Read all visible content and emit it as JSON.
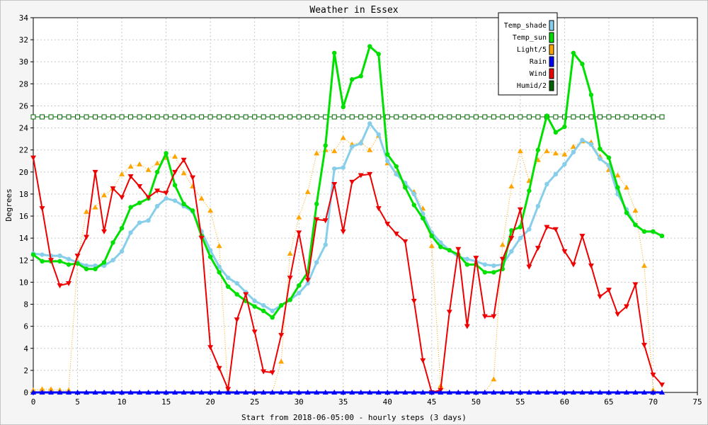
{
  "chart_data": {
    "type": "line",
    "title": "Weather in Essex",
    "xlabel": "Start from 2018-06-05:00 - hourly steps (3 days)",
    "ylabel": "Degrees",
    "xlim": [
      0,
      75
    ],
    "ylim": [
      0,
      34
    ],
    "xticks": [
      0,
      5,
      10,
      15,
      20,
      25,
      30,
      35,
      40,
      45,
      50,
      55,
      60,
      65,
      70,
      75
    ],
    "yticks": [
      0,
      2,
      4,
      6,
      8,
      10,
      12,
      14,
      16,
      18,
      20,
      22,
      24,
      26,
      28,
      30,
      32,
      34
    ],
    "grid": true,
    "legend_position": "top-right",
    "background": "#ffffff",
    "page_background": "#f5f5f5",
    "series": [
      {
        "name": "Temp_shade",
        "color": "#87ceeb",
        "marker": "circle",
        "line_width": 3,
        "dotted": false,
        "values": [
          12.6,
          12.5,
          12.4,
          12.4,
          12.1,
          11.8,
          11.5,
          11.5,
          11.5,
          12.0,
          12.8,
          14.5,
          15.4,
          15.6,
          16.9,
          17.6,
          17.4,
          16.9,
          16.4,
          14.6,
          12.9,
          11.4,
          10.4,
          9.9,
          9.1,
          8.3,
          7.9,
          7.4,
          7.9,
          8.4,
          9.0,
          9.9,
          11.8,
          13.4,
          20.3,
          20.4,
          22.3,
          22.6,
          24.4,
          23.4,
          21.0,
          19.8,
          19.0,
          18.0,
          16.2,
          14.5,
          13.6,
          12.9,
          12.3,
          12.1,
          11.9,
          11.6,
          11.5,
          11.6,
          12.8,
          14.0,
          14.8,
          16.9,
          18.9,
          19.8,
          20.7,
          21.8,
          22.9,
          22.5,
          21.2,
          20.6,
          18.0,
          16.6,
          15.2,
          14.6,
          14.6,
          14.2
        ]
      },
      {
        "name": "Temp_sun",
        "color": "#00e000",
        "marker": "circle",
        "line_width": 3,
        "dotted": false,
        "values": [
          12.5,
          11.9,
          11.9,
          11.9,
          11.6,
          11.7,
          11.2,
          11.2,
          11.8,
          13.6,
          14.9,
          16.8,
          17.2,
          17.6,
          20.0,
          21.7,
          18.8,
          17.1,
          16.5,
          14.2,
          12.3,
          10.9,
          9.6,
          8.9,
          8.3,
          7.8,
          7.4,
          6.8,
          7.9,
          8.4,
          9.7,
          10.9,
          17.1,
          22.4,
          30.8,
          25.9,
          28.4,
          28.7,
          31.4,
          30.7,
          21.6,
          20.5,
          18.6,
          17.0,
          15.8,
          14.2,
          13.2,
          12.9,
          12.5,
          11.6,
          11.6,
          10.9,
          10.9,
          11.2,
          14.7,
          15.0,
          18.3,
          22.0,
          25.1,
          23.6,
          24.1,
          30.8,
          29.8,
          27.0,
          22.1,
          21.3,
          18.6,
          16.3,
          15.2,
          14.6,
          14.6,
          14.2
        ]
      },
      {
        "name": "Light/5",
        "color": "#ffa500",
        "marker": "triangle-up",
        "line_width": 1,
        "dotted": true,
        "values": [
          0.2,
          0.3,
          0.3,
          0.2,
          0.2,
          11.9,
          16.4,
          16.8,
          17.9,
          18.5,
          19.8,
          20.5,
          20.7,
          20.2,
          20.8,
          21.3,
          21.4,
          19.9,
          18.7,
          17.6,
          16.5,
          13.3,
          0.2,
          0.0,
          0.0,
          0.1,
          0.0,
          0.0,
          2.8,
          12.6,
          15.9,
          18.2,
          21.7,
          22.0,
          21.9,
          23.1,
          22.5,
          22.7,
          22.0,
          23.3,
          20.8,
          19.9,
          18.9,
          18.2,
          16.7,
          13.3,
          0.6,
          0.0,
          0.0,
          0.0,
          0.0,
          0.0,
          1.2,
          13.4,
          18.7,
          21.9,
          19.2,
          21.1,
          21.9,
          21.7,
          21.6,
          22.3,
          22.8,
          22.7,
          21.4,
          20.2,
          19.7,
          18.6,
          16.5,
          11.5,
          0.2,
          0.0
        ]
      },
      {
        "name": "Rain",
        "color": "#0000ff",
        "marker": "triangle-up",
        "line_width": 3,
        "dotted": false,
        "values": [
          0,
          0,
          0,
          0,
          0,
          0,
          0,
          0,
          0,
          0,
          0,
          0,
          0,
          0,
          0,
          0,
          0,
          0,
          0,
          0,
          0,
          0,
          0,
          0,
          0,
          0,
          0,
          0,
          0,
          0,
          0,
          0,
          0,
          0,
          0,
          0,
          0,
          0,
          0,
          0,
          0,
          0,
          0,
          0,
          0,
          0,
          0,
          0,
          0,
          0,
          0,
          0,
          0,
          0,
          0,
          0,
          0,
          0,
          0,
          0,
          0,
          0,
          0,
          0,
          0,
          0,
          0,
          0,
          0,
          0,
          0,
          0
        ]
      },
      {
        "name": "Wind",
        "color": "#ee0000",
        "marker": "triangle-down",
        "line_width": 2,
        "dotted": false,
        "values": [
          21.3,
          16.7,
          12.0,
          9.7,
          9.9,
          12.4,
          14.1,
          20.0,
          14.6,
          18.5,
          17.7,
          19.6,
          18.7,
          17.7,
          18.3,
          18.1,
          20.0,
          21.1,
          19.5,
          14.0,
          4.1,
          2.2,
          0.3,
          6.6,
          8.9,
          5.5,
          1.9,
          1.8,
          5.2,
          10.4,
          14.5,
          10.2,
          15.7,
          15.6,
          18.9,
          14.6,
          19.1,
          19.7,
          19.8,
          16.7,
          15.3,
          14.4,
          13.7,
          8.3,
          2.9,
          0.0,
          0.2,
          7.3,
          13.0,
          6.0,
          12.2,
          6.9,
          6.9,
          12.1,
          14.0,
          16.6,
          11.4,
          13.1,
          15.0,
          14.8,
          12.8,
          11.6,
          14.2,
          11.5,
          8.7,
          9.3,
          7.1,
          7.8,
          9.8,
          4.3,
          1.6,
          0.7
        ]
      },
      {
        "name": "Humid/2",
        "color": "#006400",
        "marker": "square",
        "line_width": 1,
        "dotted": false,
        "values": [
          25,
          25,
          25,
          25,
          25,
          25,
          25,
          25,
          25,
          25,
          25,
          25,
          25,
          25,
          25,
          25,
          25,
          25,
          25,
          25,
          25,
          25,
          25,
          25,
          25,
          25,
          25,
          25,
          25,
          25,
          25,
          25,
          25,
          25,
          25,
          25,
          25,
          25,
          25,
          25,
          25,
          25,
          25,
          25,
          25,
          25,
          25,
          25,
          25,
          25,
          25,
          25,
          25,
          25,
          25,
          25,
          25,
          25,
          25,
          25,
          25,
          25,
          25,
          25,
          25,
          25,
          25,
          25,
          25,
          25,
          25,
          25
        ]
      }
    ]
  }
}
